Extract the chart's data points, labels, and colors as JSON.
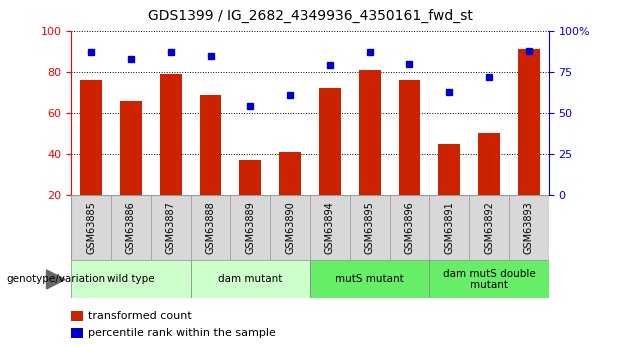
{
  "title": "GDS1399 / IG_2682_4349936_4350161_fwd_st",
  "samples": [
    "GSM63885",
    "GSM63886",
    "GSM63887",
    "GSM63888",
    "GSM63889",
    "GSM63890",
    "GSM63894",
    "GSM63895",
    "GSM63896",
    "GSM63891",
    "GSM63892",
    "GSM63893"
  ],
  "red_values": [
    76,
    66,
    79,
    69,
    37,
    41,
    72,
    81,
    76,
    45,
    50,
    91
  ],
  "blue_values": [
    87,
    83,
    87,
    85,
    54,
    61,
    79,
    87,
    80,
    63,
    72,
    88
  ],
  "groups": [
    {
      "label": "wild type",
      "start": 0,
      "end": 3,
      "color": "#ccffcc"
    },
    {
      "label": "dam mutant",
      "start": 3,
      "end": 6,
      "color": "#ccffcc"
    },
    {
      "label": "mutS mutant",
      "start": 6,
      "end": 9,
      "color": "#66ee66"
    },
    {
      "label": "dam mutS double\nmutant",
      "start": 9,
      "end": 12,
      "color": "#66ee66"
    }
  ],
  "ylim_left": [
    20,
    100
  ],
  "ylim_right": [
    0,
    100
  ],
  "yticks_left": [
    20,
    40,
    60,
    80,
    100
  ],
  "yticks_right": [
    0,
    25,
    50,
    75,
    100
  ],
  "ytick_labels_right": [
    "0",
    "25",
    "50",
    "75",
    "100%"
  ],
  "bar_color": "#cc2200",
  "dot_color": "#0000cc",
  "grid_color": "#000000",
  "background_color": "#ffffff",
  "genotype_label": "genotype/variation",
  "legend_items": [
    "transformed count",
    "percentile rank within the sample"
  ],
  "legend_colors": [
    "#cc2200",
    "#0000cc"
  ]
}
